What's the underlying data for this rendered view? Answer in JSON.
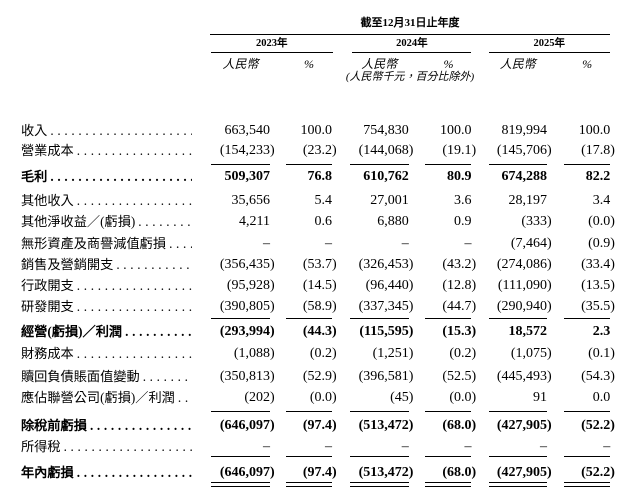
{
  "colors": {
    "background": "#ffffff",
    "text": "#000000",
    "rule": "#000000"
  },
  "table": {
    "period_header": "截至12月31日止年度",
    "unit_note": "(人民幣千元，百分比除外)",
    "year_groups": [
      {
        "year": "2023年",
        "amount_header": "人民幣",
        "pct_header": "%"
      },
      {
        "year": "2024年",
        "amount_header": "人民幣",
        "pct_header": "%"
      },
      {
        "year": "2025年",
        "amount_header": "人民幣",
        "pct_header": "%"
      }
    ],
    "rows": [
      {
        "label": "收入",
        "values": [
          "663,540",
          "100.0",
          "754,830",
          "100.0",
          "819,994",
          "100.0"
        ],
        "bold": false
      },
      {
        "label": "營業成本",
        "values": [
          "(154,233)",
          "(23.2)",
          "(144,068)",
          "(19.1)",
          "(145,706)",
          "(17.8)"
        ],
        "bold": false,
        "rule_below": true
      },
      {
        "label": "毛利",
        "values": [
          "509,307",
          "76.8",
          "610,762",
          "80.9",
          "674,288",
          "82.2"
        ],
        "bold": true
      },
      {
        "label": "其他收入",
        "values": [
          "35,656",
          "5.4",
          "27,001",
          "3.6",
          "28,197",
          "3.4"
        ],
        "bold": false
      },
      {
        "label": "其他淨收益／(虧損)",
        "values": [
          "4,211",
          "0.6",
          "6,880",
          "0.9",
          "(333)",
          "(0.0)"
        ],
        "bold": false
      },
      {
        "label": "無形資產及商譽減值虧損",
        "values": [
          "–",
          "–",
          "–",
          "–",
          "(7,464)",
          "(0.9)"
        ],
        "bold": false
      },
      {
        "label": "銷售及營銷開支",
        "values": [
          "(356,435)",
          "(53.7)",
          "(326,453)",
          "(43.2)",
          "(274,086)",
          "(33.4)"
        ],
        "bold": false
      },
      {
        "label": "行政開支",
        "values": [
          "(95,928)",
          "(14.5)",
          "(96,440)",
          "(12.8)",
          "(111,090)",
          "(13.5)"
        ],
        "bold": false
      },
      {
        "label": "研發開支",
        "values": [
          "(390,805)",
          "(58.9)",
          "(337,345)",
          "(44.7)",
          "(290,940)",
          "(35.5)"
        ],
        "bold": false,
        "rule_below": true
      },
      {
        "label": "經營(虧損)／利潤",
        "values": [
          "(293,994)",
          "(44.3)",
          "(115,595)",
          "(15.3)",
          "18,572",
          "2.3"
        ],
        "bold": true
      },
      {
        "label": "財務成本",
        "values": [
          "(1,088)",
          "(0.2)",
          "(1,251)",
          "(0.2)",
          "(1,075)",
          "(0.1)"
        ],
        "bold": false
      },
      {
        "label": "贖回負債賬面值變動",
        "values": [
          "(350,813)",
          "(52.9)",
          "(396,581)",
          "(52.5)",
          "(445,493)",
          "(54.3)"
        ],
        "bold": false
      },
      {
        "label": "應佔聯營公司(虧損)／利潤",
        "values": [
          "(202)",
          "(0.0)",
          "(45)",
          "(0.0)",
          "91",
          "0.0"
        ],
        "bold": false,
        "rule_below": true
      },
      {
        "label": "除稅前虧損",
        "values": [
          "(646,097)",
          "(97.4)",
          "(513,472)",
          "(68.0)",
          "(427,905)",
          "(52.2)"
        ],
        "bold": true
      },
      {
        "label": "所得稅",
        "values": [
          "–",
          "–",
          "–",
          "–",
          "–",
          "–"
        ],
        "bold": false,
        "rule_below": true
      },
      {
        "label": "年內虧損",
        "values": [
          "(646,097)",
          "(97.4)",
          "(513,472)",
          "(68.0)",
          "(427,905)",
          "(52.2)"
        ],
        "bold": true,
        "double_rule_below": true
      }
    ]
  }
}
